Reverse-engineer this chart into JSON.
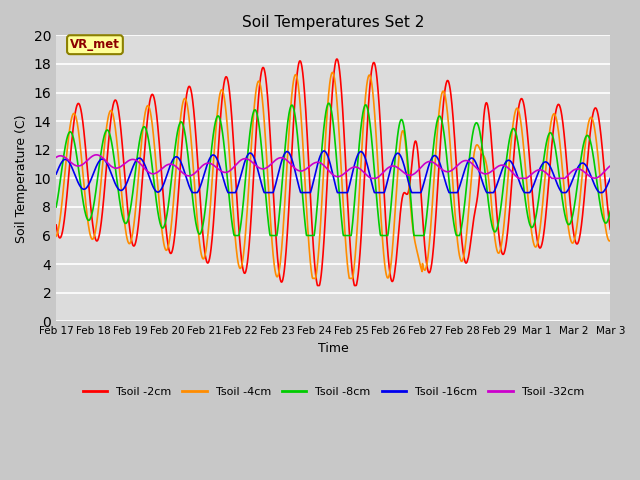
{
  "title": "Soil Temperatures Set 2",
  "xlabel": "Time",
  "ylabel": "Soil Temperature (C)",
  "ylim": [
    0,
    20
  ],
  "yticks": [
    0,
    2,
    4,
    6,
    8,
    10,
    12,
    14,
    16,
    18,
    20
  ],
  "bg_color": "#dcdcdc",
  "grid_color": "#ffffff",
  "fig_bg_color": "#c8c8c8",
  "annotation_text": "VR_met",
  "annotation_bg": "#ffff99",
  "annotation_border": "#8B8000",
  "series_colors": {
    "Tsoil -2cm": "#ff0000",
    "Tsoil -4cm": "#ff8c00",
    "Tsoil -8cm": "#00cc00",
    "Tsoil -16cm": "#0000ee",
    "Tsoil -32cm": "#cc00cc"
  },
  "xtick_labels": [
    "Feb 17",
    "Feb 18",
    "Feb 19",
    "Feb 20",
    "Feb 21",
    "Feb 22",
    "Feb 23",
    "Feb 24",
    "Feb 25",
    "Feb 26",
    "Feb 27",
    "Feb 28",
    "Feb 29",
    "Mar 1",
    "Mar 2",
    "Mar 3"
  ],
  "date_start": 0,
  "date_end": 15
}
